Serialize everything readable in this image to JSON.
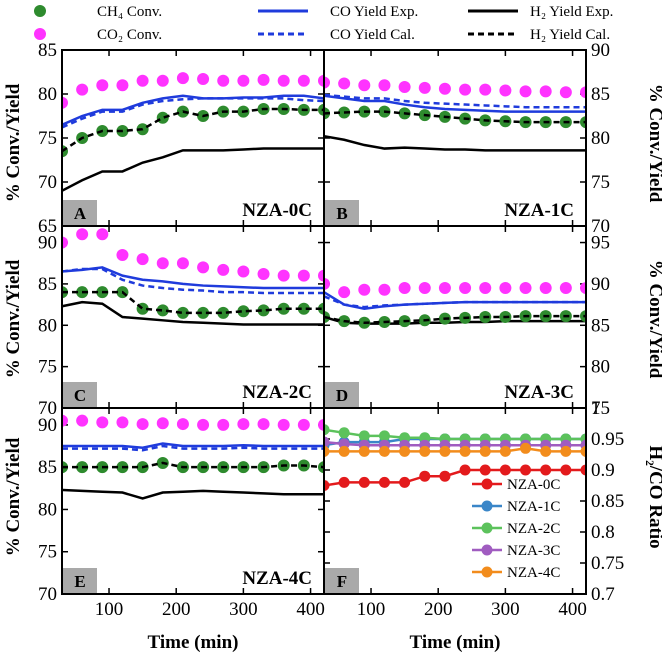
{
  "legend": {
    "ch4": "CH₄ Conv.",
    "co2": "CO₂ Conv.",
    "co_exp": "CO Yield Exp.",
    "co_cal": "CO Yield Cal.",
    "h2_exp": "H₂ Yield Exp.",
    "h2_cal": "H₂ Yield Cal."
  },
  "axis_labels": {
    "y_left": "% Conv./Yield",
    "y_right": "% Conv./Yield",
    "y_ratio": "H₂/CO Ratio",
    "x": "Time (min)"
  },
  "colors": {
    "ch4": "#2e8b2e",
    "co2": "#ff33ff",
    "co": "#1f3bdc",
    "h2": "#000000",
    "NZA-0C": "#e31a1c",
    "NZA-1C": "#3a86c8",
    "NZA-2C": "#5cc25c",
    "NZA-3C": "#a05cc0",
    "NZA-4C": "#f28c1c"
  },
  "chart_data": [
    {
      "type": "line",
      "panel": "A",
      "title": "NZA-0C",
      "xlim": [
        30,
        420
      ],
      "ylim": [
        65,
        85
      ],
      "yticks": [
        65,
        70,
        75,
        80,
        85
      ],
      "axis_side": "left",
      "x": [
        30,
        60,
        90,
        120,
        150,
        180,
        210,
        240,
        270,
        300,
        330,
        360,
        390,
        420
      ],
      "series": [
        {
          "name": "CO2 Conv.",
          "values": [
            79,
            80.5,
            81,
            81,
            81.5,
            81.5,
            81.8,
            81.7,
            81.5,
            81.5,
            81.6,
            81.5,
            81.5,
            81.5
          ]
        },
        {
          "name": "CH4 Conv.",
          "values": [
            73.5,
            75,
            75.8,
            75.8,
            76,
            77.3,
            78,
            77.5,
            78,
            78,
            78.3,
            78.3,
            78.2,
            78.2
          ]
        },
        {
          "name": "CO Yield Exp.",
          "values": [
            76.5,
            77.5,
            78.2,
            78.2,
            79,
            79.5,
            79.8,
            79.5,
            79.5,
            79.6,
            79.6,
            79.8,
            79.8,
            79.5
          ]
        },
        {
          "name": "CO Yield Cal.",
          "values": [
            76.2,
            77.2,
            78,
            78,
            78.8,
            79.2,
            79.4,
            79.5,
            79.5,
            79.5,
            79.5,
            79.5,
            79.3,
            79.2
          ]
        },
        {
          "name": "H2 Yield Exp.",
          "values": [
            69,
            70.2,
            71.2,
            71.2,
            72.2,
            72.8,
            73.6,
            73.6,
            73.6,
            73.7,
            73.8,
            73.8,
            73.8,
            73.8
          ]
        },
        {
          "name": "H2 Yield Cal.",
          "values": [
            73.5,
            75,
            75.8,
            75.8,
            76,
            77.3,
            78,
            77.5,
            78,
            78,
            78.3,
            78.3,
            78.2,
            78.2
          ]
        }
      ]
    },
    {
      "type": "line",
      "panel": "B",
      "title": "NZA-1C",
      "xlim": [
        30,
        420
      ],
      "ylim": [
        70,
        90
      ],
      "yticks": [
        70,
        75,
        80,
        85,
        90
      ],
      "axis_side": "right",
      "x": [
        30,
        60,
        90,
        120,
        150,
        180,
        210,
        240,
        270,
        300,
        330,
        360,
        390,
        420
      ],
      "series": [
        {
          "name": "CO2 Conv.",
          "values": [
            86.3,
            86.2,
            86,
            86,
            85.8,
            85.7,
            85.6,
            85.5,
            85.5,
            85.4,
            85.3,
            85.3,
            85.2,
            85.2
          ]
        },
        {
          "name": "CH4 Conv.",
          "values": [
            82.8,
            82.9,
            83,
            83,
            82.8,
            82.6,
            82.4,
            82.2,
            82,
            81.9,
            81.8,
            81.8,
            81.8,
            81.8
          ]
        },
        {
          "name": "CO Yield Exp.",
          "values": [
            84.8,
            84.5,
            84.2,
            84.2,
            83.8,
            83.5,
            83.3,
            83.2,
            83.1,
            83,
            83,
            83,
            83,
            83
          ]
        },
        {
          "name": "CO Yield Cal.",
          "values": [
            84.9,
            84.7,
            84.5,
            84.5,
            84.2,
            84,
            83.9,
            83.8,
            83.7,
            83.6,
            83.5,
            83.5,
            83.5,
            83.5
          ]
        },
        {
          "name": "H2 Yield Exp.",
          "values": [
            80.2,
            79.8,
            79.2,
            78.8,
            78.9,
            78.8,
            78.7,
            78.7,
            78.6,
            78.6,
            78.6,
            78.6,
            78.6,
            78.6
          ]
        },
        {
          "name": "H2 Yield Cal.",
          "values": [
            82.8,
            82.9,
            83,
            83,
            82.8,
            82.6,
            82.4,
            82.2,
            82,
            81.9,
            81.8,
            81.8,
            81.8,
            81.8
          ]
        }
      ]
    },
    {
      "type": "line",
      "panel": "C",
      "title": "NZA-2C",
      "xlim": [
        30,
        420
      ],
      "ylim": [
        70,
        92
      ],
      "yticks": [
        70,
        75,
        80,
        85,
        90
      ],
      "axis_side": "left",
      "x": [
        30,
        60,
        90,
        120,
        150,
        180,
        210,
        240,
        270,
        300,
        330,
        360,
        390,
        420
      ],
      "series": [
        {
          "name": "CO2 Conv.",
          "values": [
            90,
            91,
            91,
            88.5,
            88,
            87.5,
            87.5,
            87,
            86.7,
            86.5,
            86.2,
            86,
            86,
            86
          ]
        },
        {
          "name": "CH4 Conv.",
          "values": [
            84,
            84,
            84,
            84,
            82,
            81.8,
            81.5,
            81.5,
            81.5,
            81.7,
            81.8,
            82,
            82,
            82
          ]
        },
        {
          "name": "CO Yield Exp.",
          "values": [
            86.5,
            86.7,
            87,
            86,
            85.5,
            85.3,
            85,
            84.8,
            84.7,
            84.6,
            84.5,
            84.5,
            84.5,
            84.5
          ]
        },
        {
          "name": "CO Yield Cal.",
          "values": [
            86.5,
            86.8,
            86.8,
            85.5,
            84.8,
            84.5,
            84.3,
            84.2,
            84,
            84,
            83.9,
            83.9,
            83.9,
            83.9
          ]
        },
        {
          "name": "H2 Yield Exp.",
          "values": [
            82.3,
            82.8,
            82.6,
            81,
            80.8,
            80.6,
            80.4,
            80.3,
            80.2,
            80.1,
            80.1,
            80.1,
            80.1,
            80.1
          ]
        },
        {
          "name": "H2 Yield Cal.",
          "values": [
            84,
            84,
            84,
            84,
            82,
            81.8,
            81.5,
            81.5,
            81.5,
            81.7,
            81.8,
            82,
            82,
            82
          ]
        }
      ]
    },
    {
      "type": "line",
      "panel": "D",
      "title": "NZA-3C",
      "xlim": [
        30,
        420
      ],
      "ylim": [
        75,
        97
      ],
      "yticks": [
        75,
        80,
        85,
        90,
        95
      ],
      "axis_side": "right",
      "x": [
        30,
        60,
        90,
        120,
        150,
        180,
        210,
        240,
        270,
        300,
        330,
        360,
        390,
        420
      ],
      "series": [
        {
          "name": "CO2 Conv.",
          "values": [
            90,
            89,
            89.3,
            89.3,
            89.5,
            89.5,
            89.5,
            89.5,
            89.5,
            89.5,
            89.5,
            89.5,
            89.5,
            89.5
          ]
        },
        {
          "name": "CH4 Conv.",
          "values": [
            86,
            85.5,
            85.3,
            85.4,
            85.5,
            85.6,
            85.8,
            85.9,
            86,
            86,
            86.1,
            86.1,
            86.1,
            86.1
          ]
        },
        {
          "name": "CO Yield Exp.",
          "values": [
            89,
            87.5,
            87,
            87.3,
            87.5,
            87.6,
            87.7,
            87.8,
            87.8,
            87.8,
            87.8,
            87.8,
            87.8,
            87.8
          ]
        },
        {
          "name": "CO Yield Cal.",
          "values": [
            88.5,
            87.5,
            87.2,
            87.4,
            87.5,
            87.6,
            87.7,
            87.8,
            87.8,
            87.8,
            87.8,
            87.8,
            87.8,
            87.8
          ]
        },
        {
          "name": "H2 Yield Exp.",
          "values": [
            86,
            85.3,
            85.2,
            85.2,
            85.2,
            85.3,
            85.3,
            85.4,
            85.4,
            85.5,
            85.5,
            85.5,
            85.5,
            85.5
          ]
        },
        {
          "name": "H2 Yield Cal.",
          "values": [
            86,
            85.5,
            85.3,
            85.4,
            85.5,
            85.6,
            85.8,
            85.9,
            86,
            86,
            86.1,
            86.1,
            86.1,
            86.1
          ]
        }
      ]
    },
    {
      "type": "line",
      "panel": "E",
      "title": "NZA-4C",
      "xlim": [
        30,
        420
      ],
      "ylim": [
        70,
        92
      ],
      "yticks": [
        70,
        75,
        80,
        85,
        90
      ],
      "axis_side": "left",
      "x": [
        30,
        60,
        90,
        120,
        150,
        180,
        210,
        240,
        270,
        300,
        330,
        360,
        390,
        420
      ],
      "series": [
        {
          "name": "CO2 Conv.",
          "values": [
            90.5,
            90.5,
            90.3,
            90.3,
            90.1,
            90.2,
            90.1,
            90,
            90,
            90.1,
            90.1,
            90,
            90,
            90
          ]
        },
        {
          "name": "CH4 Conv.",
          "values": [
            85,
            85,
            85,
            85,
            85,
            85.5,
            85,
            85,
            85,
            85,
            85,
            85.2,
            85.2,
            85
          ]
        },
        {
          "name": "CO Yield Exp.",
          "values": [
            87.5,
            87.5,
            87.5,
            87.5,
            87.3,
            87.8,
            87.5,
            87.5,
            87.5,
            87.6,
            87.5,
            87.5,
            87.5,
            87.5
          ]
        },
        {
          "name": "CO Yield Cal.",
          "values": [
            87.2,
            87.2,
            87.2,
            87.2,
            87,
            87.5,
            87.2,
            87.2,
            87.2,
            87.3,
            87.2,
            87.2,
            87.2,
            87.2
          ]
        },
        {
          "name": "H2 Yield Exp.",
          "values": [
            82.3,
            82.2,
            82.1,
            82,
            81.3,
            82,
            82.1,
            82.2,
            82.1,
            82,
            81.9,
            81.8,
            81.8,
            81.8
          ]
        },
        {
          "name": "H2 Yield Cal.",
          "values": [
            85,
            85,
            85,
            85,
            85,
            85.5,
            85,
            85,
            85,
            85,
            85,
            85.2,
            85.2,
            85
          ]
        }
      ]
    },
    {
      "type": "line",
      "panel": "F",
      "title": "",
      "xlim": [
        30,
        420
      ],
      "ylim": [
        0.7,
        1.0
      ],
      "yticks": [
        0.7,
        0.75,
        0.8,
        0.85,
        0.9,
        0.95,
        1.0
      ],
      "ytick_labels": [
        "0.7",
        "0.75",
        "0.8",
        "0.85",
        "0.9",
        "0.95",
        "1"
      ],
      "ylabel": "H2/CO Ratio",
      "axis_side": "right",
      "x": [
        30,
        60,
        90,
        120,
        150,
        180,
        210,
        240,
        270,
        300,
        330,
        360,
        390,
        420
      ],
      "series": [
        {
          "name": "NZA-0C",
          "values": [
            0.875,
            0.88,
            0.88,
            0.88,
            0.88,
            0.89,
            0.89,
            0.9,
            0.9,
            0.9,
            0.9,
            0.9,
            0.9,
            0.9
          ]
        },
        {
          "name": "NZA-1C",
          "values": [
            0.94,
            0.945,
            0.945,
            0.945,
            0.95,
            0.95,
            0.95,
            0.95,
            0.95,
            0.95,
            0.95,
            0.95,
            0.95,
            0.95
          ]
        },
        {
          "name": "NZA-2C",
          "values": [
            0.965,
            0.96,
            0.955,
            0.955,
            0.952,
            0.952,
            0.95,
            0.95,
            0.95,
            0.95,
            0.95,
            0.95,
            0.95,
            0.95
          ]
        },
        {
          "name": "NZA-3C",
          "values": [
            0.945,
            0.942,
            0.94,
            0.94,
            0.94,
            0.94,
            0.94,
            0.94,
            0.94,
            0.94,
            0.94,
            0.94,
            0.94,
            0.94
          ]
        },
        {
          "name": "NZA-4C",
          "values": [
            0.93,
            0.93,
            0.93,
            0.93,
            0.93,
            0.93,
            0.93,
            0.93,
            0.93,
            0.93,
            0.935,
            0.93,
            0.93,
            0.93
          ]
        }
      ]
    }
  ],
  "xticks": [
    100,
    200,
    300,
    400
  ],
  "xtick_labels": [
    "100",
    "200",
    "300",
    "400"
  ]
}
